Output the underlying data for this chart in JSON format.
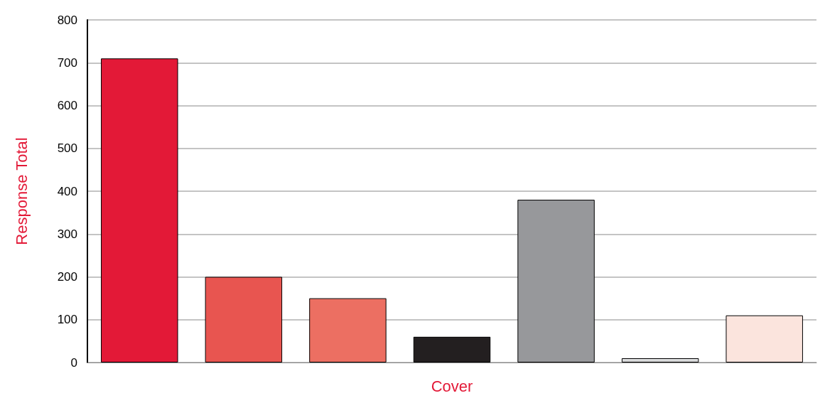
{
  "chart_data": {
    "type": "bar",
    "xlabel": "Cover",
    "ylabel": "Response Total",
    "categories": [
      null,
      null,
      null,
      null,
      null,
      null,
      null
    ],
    "values": [
      710,
      200,
      150,
      60,
      380,
      10,
      110
    ],
    "colors": [
      "#e31937",
      "#e85550",
      "#ec6f62",
      "#231f20",
      "#97989b",
      "#d9dadb",
      "#fbe4dd"
    ],
    "ylim": [
      0,
      800
    ],
    "yticks": [
      0,
      100,
      200,
      300,
      400,
      500,
      600,
      700,
      800
    ],
    "grid": "y"
  }
}
